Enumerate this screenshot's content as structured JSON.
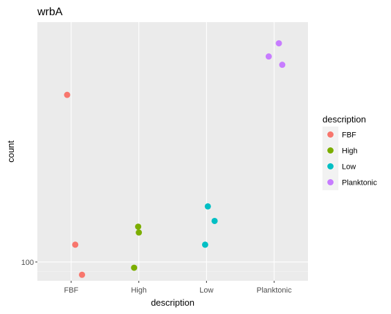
{
  "chart_data": {
    "type": "scatter",
    "title": "wrbA",
    "xlabel": "description",
    "ylabel": "count",
    "categories": [
      "FBF",
      "High",
      "Low",
      "Planktonic"
    ],
    "y_scale": "log",
    "y_ticks": [
      100
    ],
    "y_tick_labels": [
      "100"
    ],
    "ylim": [
      92,
      290
    ],
    "grid": true,
    "legend": {
      "title": "description",
      "placement": "right",
      "entries": [
        "FBF",
        "High",
        "Low",
        "Planktonic"
      ]
    },
    "colors": {
      "FBF": "#F8766D",
      "High": "#7CAE00",
      "Low": "#00BFC4",
      "Planktonic": "#C77CFF"
    },
    "series": [
      {
        "category": "FBF",
        "points": [
          {
            "jitter": -0.06,
            "y": 210
          },
          {
            "jitter": 0.06,
            "y": 108
          },
          {
            "jitter": 0.16,
            "y": 94.5
          }
        ]
      },
      {
        "category": "High",
        "points": [
          {
            "jitter": -0.07,
            "y": 97.5
          },
          {
            "jitter": -0.01,
            "y": 117
          },
          {
            "jitter": 0.0,
            "y": 114
          }
        ]
      },
      {
        "category": "Low",
        "points": [
          {
            "jitter": 0.02,
            "y": 128
          },
          {
            "jitter": 0.12,
            "y": 120
          },
          {
            "jitter": -0.02,
            "y": 108
          }
        ]
      },
      {
        "category": "Planktonic",
        "points": [
          {
            "jitter": 0.07,
            "y": 264
          },
          {
            "jitter": -0.08,
            "y": 249
          },
          {
            "jitter": 0.12,
            "y": 240
          }
        ]
      }
    ]
  }
}
